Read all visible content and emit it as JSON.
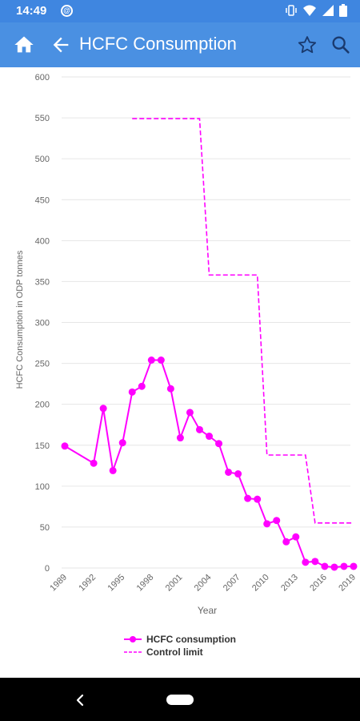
{
  "status_bar": {
    "time": "14:49",
    "app_icon_letter": "@",
    "icons": [
      "vibrate-icon",
      "wifi-icon",
      "signal-icon",
      "battery-icon"
    ]
  },
  "app_bar": {
    "title": "HCFC Consumption",
    "icons": [
      "home-icon",
      "back-arrow-icon",
      "star-icon",
      "search-icon"
    ]
  },
  "chart_data": {
    "type": "line",
    "xlabel": "Year",
    "ylabel": "HCFC Consumption in ODP tonnes",
    "ylim": [
      0,
      600
    ],
    "yticks": [
      0,
      50,
      100,
      150,
      200,
      250,
      300,
      350,
      400,
      450,
      500,
      550,
      600
    ],
    "xlim": [
      1989,
      2019
    ],
    "xticks": [
      1989,
      1992,
      1995,
      1998,
      2001,
      2004,
      2007,
      2010,
      2013,
      2016,
      2019
    ],
    "grid": true,
    "legend_position": "bottom",
    "series": [
      {
        "name": "HCFC consumption",
        "style": "solid-with-markers",
        "color": "#ff00ff",
        "x": [
          1989,
          1992,
          1993,
          1994,
          1995,
          1996,
          1997,
          1998,
          1999,
          2000,
          2001,
          2002,
          2003,
          2004,
          2005,
          2006,
          2007,
          2008,
          2009,
          2010,
          2011,
          2012,
          2013,
          2014,
          2015,
          2016,
          2017,
          2018,
          2019
        ],
        "y": [
          149,
          128,
          195,
          119,
          153,
          215,
          222,
          254,
          254,
          219,
          159,
          190,
          169,
          161,
          152,
          117,
          115,
          85,
          84,
          54,
          58,
          32,
          38,
          7,
          8,
          2,
          1,
          2,
          2
        ]
      },
      {
        "name": "Control limit",
        "style": "dashed",
        "color": "#ff00ff",
        "x": [
          1996,
          2003,
          2004,
          2009,
          2010,
          2014,
          2015,
          2019
        ],
        "y": [
          549,
          549,
          358,
          358,
          138,
          138,
          55,
          55
        ],
        "step": true
      }
    ]
  },
  "legend": {
    "items": [
      "HCFC consumption",
      "Control limit"
    ]
  },
  "nav_bar": {
    "icons": [
      "nav-back-icon",
      "nav-home-pill"
    ]
  }
}
